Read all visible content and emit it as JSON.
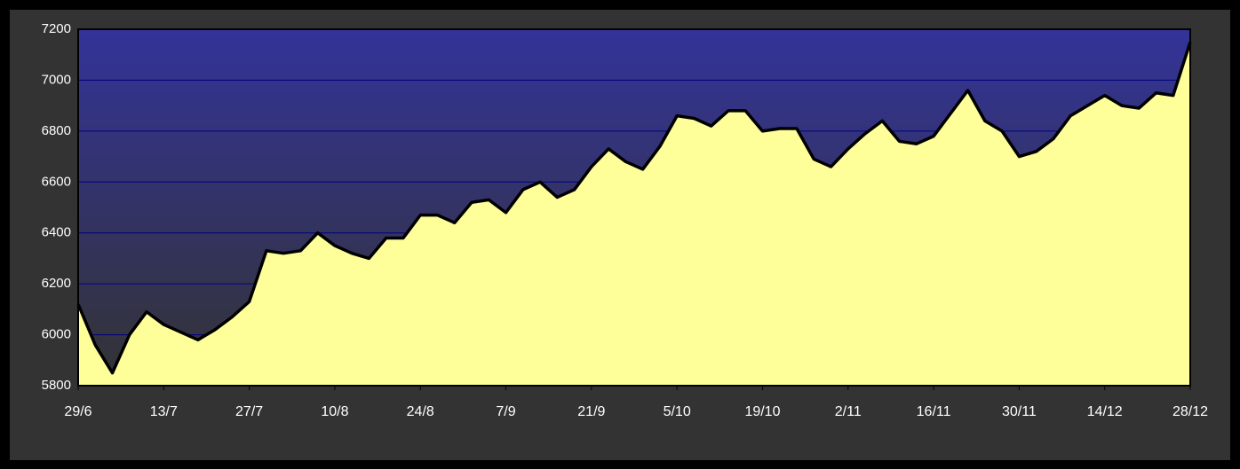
{
  "chart_data": {
    "type": "area",
    "categories": [
      "29/6",
      null,
      null,
      null,
      null,
      "13/7",
      null,
      null,
      null,
      null,
      "27/7",
      null,
      null,
      null,
      null,
      "10/8",
      null,
      null,
      null,
      null,
      "24/8",
      null,
      null,
      null,
      null,
      "7/9",
      null,
      null,
      null,
      null,
      "21/9",
      null,
      null,
      null,
      null,
      "5/10",
      null,
      null,
      null,
      null,
      "19/10",
      null,
      null,
      null,
      null,
      "2/11",
      null,
      null,
      null,
      null,
      "16/11",
      null,
      null,
      null,
      null,
      "30/11",
      null,
      null,
      null,
      null,
      "14/12",
      null,
      null,
      null,
      null,
      "28/12"
    ],
    "values": [
      6120,
      5960,
      5850,
      6000,
      6090,
      6040,
      6010,
      5980,
      6020,
      6070,
      6130,
      6330,
      6320,
      6330,
      6400,
      6350,
      6320,
      6300,
      6380,
      6380,
      6470,
      6470,
      6440,
      6520,
      6530,
      6480,
      6570,
      6600,
      6540,
      6570,
      6660,
      6730,
      6680,
      6650,
      6740,
      6860,
      6850,
      6820,
      6880,
      6880,
      6800,
      6810,
      6810,
      6690,
      6660,
      6730,
      6790,
      6840,
      6760,
      6750,
      6780,
      6870,
      6960,
      6840,
      6800,
      6700,
      6720,
      6770,
      6860,
      6900,
      6940,
      6900,
      6890,
      6950,
      6940,
      7150
    ],
    "color": "#ffff99",
    "ylim": [
      5800,
      7200
    ],
    "yticks": [
      5800,
      6000,
      6200,
      6400,
      6600,
      6800,
      7000,
      7200
    ],
    "grid": true
  }
}
